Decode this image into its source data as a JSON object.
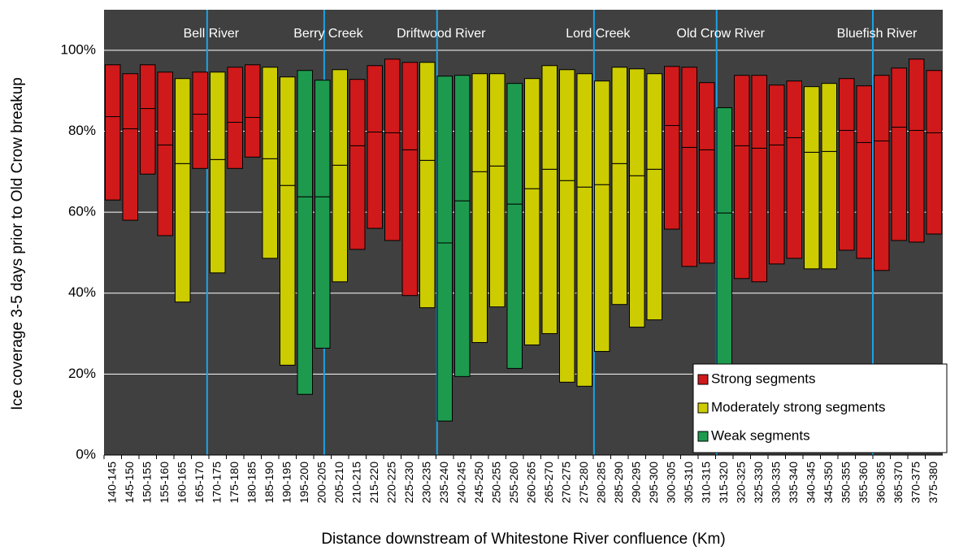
{
  "chart_data": {
    "type": "floating-box",
    "x_label": "Distance downstream of Whitestone River confluence (Km)",
    "y_label": "Ice coverage 3-5 days prior to Old Crow breakup",
    "categories": [
      "140-145",
      "145-150",
      "150-155",
      "155-160",
      "160-165",
      "165-170",
      "170-175",
      "175-180",
      "180-185",
      "185-190",
      "190-195",
      "195-200",
      "200-205",
      "205-210",
      "210-215",
      "215-220",
      "220-225",
      "225-230",
      "230-235",
      "235-240",
      "240-245",
      "245-250",
      "250-255",
      "255-260",
      "260-265",
      "265-270",
      "270-275",
      "275-280",
      "280-285",
      "285-290",
      "290-295",
      "295-300",
      "300-305",
      "305-310",
      "310-315",
      "315-320",
      "320-325",
      "325-330",
      "330-335",
      "335-340",
      "340-345",
      "345-350",
      "350-355",
      "355-360",
      "360-365",
      "365-370",
      "370-375",
      "375-380"
    ],
    "xlim": [
      140,
      380
    ],
    "ylim": [
      0,
      110
    ],
    "yticks": [
      {
        "value": 0,
        "label": "0%"
      },
      {
        "value": 20,
        "label": "20%"
      },
      {
        "value": 40,
        "label": "40%"
      },
      {
        "value": 60,
        "label": "60%"
      },
      {
        "value": 80,
        "label": "80%"
      },
      {
        "value": 100,
        "label": "100%"
      }
    ],
    "grid": true,
    "rivers": [
      {
        "name": "Bell River",
        "km": 169.5
      },
      {
        "name": "Berry Creek",
        "km": 203
      },
      {
        "name": "Driftwood River",
        "km": 235.3
      },
      {
        "name": "Lord Creek",
        "km": 280.2
      },
      {
        "name": "Old Crow River",
        "km": 315.3
      },
      {
        "name": "Bluefish River",
        "km": 360
      }
    ],
    "series": [
      {
        "name": "Strong segments",
        "color": "#d0191a",
        "low": [
          63,
          58,
          69.4,
          54.2,
          null,
          70.8,
          null,
          70.8,
          73.6,
          null,
          null,
          null,
          null,
          null,
          50.8,
          56,
          53,
          39.4,
          null,
          null,
          null,
          null,
          null,
          null,
          null,
          null,
          null,
          null,
          null,
          null,
          null,
          null,
          55.8,
          46.6,
          47.4,
          null,
          43.6,
          42.8,
          47.2,
          48.6,
          null,
          null,
          50.6,
          48.6,
          45.6,
          53,
          52.6,
          54.6
        ],
        "mid": [
          83.6,
          80.6,
          85.6,
          76.6,
          null,
          84.2,
          null,
          82.2,
          83.4,
          null,
          null,
          null,
          null,
          null,
          76.4,
          79.8,
          79.6,
          75.4,
          null,
          null,
          null,
          null,
          null,
          null,
          null,
          null,
          null,
          null,
          null,
          null,
          null,
          null,
          81.4,
          76,
          75.4,
          null,
          76.4,
          75.8,
          76.6,
          78.4,
          null,
          null,
          80.2,
          77.2,
          77.6,
          81,
          80.2,
          79.6
        ],
        "high": [
          96.4,
          94.2,
          96.4,
          94.6,
          null,
          94.6,
          null,
          95.8,
          96.4,
          null,
          null,
          null,
          null,
          null,
          92.8,
          96.2,
          97.8,
          97,
          null,
          null,
          null,
          null,
          null,
          null,
          null,
          null,
          null,
          null,
          null,
          null,
          null,
          null,
          96,
          95.8,
          92,
          null,
          93.8,
          93.8,
          91.4,
          92.4,
          null,
          null,
          93,
          91.2,
          93.8,
          95.6,
          97.8,
          95
        ]
      },
      {
        "name": "Moderately strong segments",
        "color": "#cccc00",
        "low": [
          null,
          null,
          null,
          null,
          37.8,
          null,
          45,
          null,
          null,
          48.6,
          22.2,
          null,
          null,
          42.8,
          null,
          null,
          null,
          null,
          36.4,
          null,
          null,
          27.8,
          36.6,
          null,
          27.2,
          30,
          18,
          17,
          25.6,
          37.2,
          31.6,
          33.4,
          null,
          null,
          null,
          null,
          null,
          null,
          null,
          null,
          46,
          46,
          null,
          null,
          null,
          null,
          null,
          null
        ],
        "mid": [
          null,
          null,
          null,
          null,
          72,
          null,
          73,
          null,
          null,
          73.2,
          66.6,
          null,
          null,
          71.6,
          null,
          null,
          null,
          null,
          72.8,
          null,
          null,
          70,
          71.4,
          null,
          65.8,
          70.6,
          67.8,
          66.2,
          66.8,
          72,
          69,
          70.6,
          null,
          null,
          null,
          null,
          null,
          null,
          null,
          null,
          74.8,
          75,
          null,
          null,
          null,
          null,
          null,
          null
        ],
        "high": [
          null,
          null,
          null,
          null,
          93,
          null,
          94.6,
          null,
          null,
          95.8,
          93.4,
          null,
          null,
          95.2,
          null,
          null,
          null,
          null,
          97,
          null,
          null,
          94.2,
          94.2,
          null,
          93,
          96.2,
          95.2,
          94.2,
          92.4,
          95.8,
          95.4,
          94.2,
          null,
          null,
          null,
          null,
          null,
          null,
          null,
          null,
          91,
          91.8,
          null,
          null,
          null,
          null,
          null,
          null
        ]
      },
      {
        "name": "Weak segments",
        "color": "#1e9a4e",
        "low": [
          null,
          null,
          null,
          null,
          null,
          null,
          null,
          null,
          null,
          null,
          null,
          15,
          26.4,
          null,
          null,
          null,
          null,
          null,
          null,
          8.4,
          19.4,
          null,
          null,
          21.4,
          null,
          null,
          null,
          null,
          null,
          null,
          null,
          null,
          null,
          null,
          null,
          12,
          null,
          null,
          null,
          null,
          null,
          null,
          null,
          null,
          null,
          null,
          null,
          null
        ],
        "mid": [
          null,
          null,
          null,
          null,
          null,
          null,
          null,
          null,
          null,
          null,
          null,
          63.8,
          63.8,
          null,
          null,
          null,
          null,
          null,
          null,
          52.4,
          62.8,
          null,
          null,
          62,
          null,
          null,
          null,
          null,
          null,
          null,
          null,
          null,
          null,
          null,
          null,
          59.8,
          null,
          null,
          null,
          null,
          null,
          null,
          null,
          null,
          null,
          null,
          null,
          null
        ],
        "high": [
          null,
          null,
          null,
          null,
          null,
          null,
          null,
          null,
          null,
          null,
          null,
          95,
          92.6,
          null,
          null,
          null,
          null,
          null,
          null,
          93.6,
          93.8,
          null,
          null,
          91.8,
          null,
          null,
          null,
          null,
          null,
          null,
          null,
          null,
          null,
          null,
          null,
          85.8,
          null,
          null,
          null,
          null,
          null,
          null,
          null,
          null,
          null,
          null,
          null,
          null
        ]
      }
    ]
  }
}
